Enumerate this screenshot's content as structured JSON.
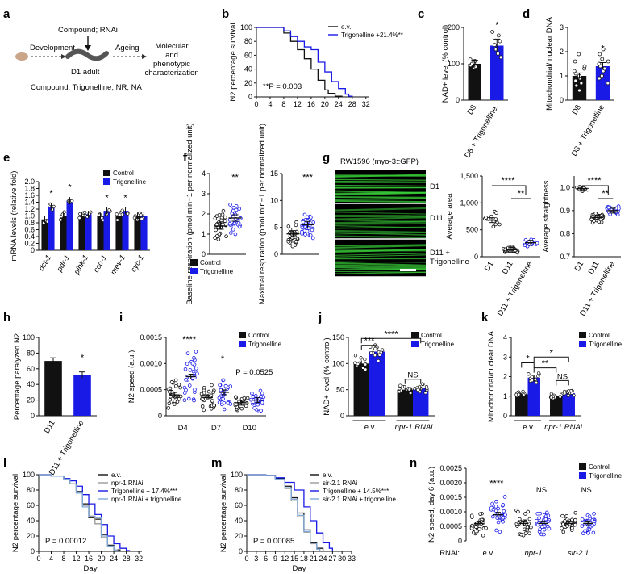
{
  "colors": {
    "control": "#111111",
    "treat": "#1a1ae6",
    "light": "#7fa8d8",
    "grey": "#9a9a9a",
    "worm": "#666666",
    "green": "#39d239"
  },
  "panels": {
    "a": {
      "label": "a",
      "compound_rnai": "Compound; RNAi",
      "development": "Development",
      "ageing": "Ageing",
      "d1": "D1 adult",
      "molecular": "Molecular",
      "and": "and",
      "phenotypic": "phenotypic",
      "characterization": "characterization",
      "compounds": "Compound: Trigonelline; NR; NA"
    },
    "b": {
      "label": "b",
      "p": "**P = 0.003"
    },
    "c": {
      "label": "c"
    },
    "d": {
      "label": "d"
    },
    "e": {
      "label": "e"
    },
    "f": {
      "label": "f"
    },
    "g": {
      "label": "g",
      "strain": "RW1596 (myo-3::GFP)",
      "rows": [
        "D1",
        "D11",
        "D11 +",
        "Trigonelline"
      ]
    },
    "h": {
      "label": "h"
    },
    "i": {
      "label": "i"
    },
    "j": {
      "label": "j"
    },
    "k": {
      "label": "k"
    },
    "l": {
      "label": "l",
      "p": "P = 0.00012"
    },
    "m": {
      "label": "m",
      "p": "P = 0.00085"
    },
    "n": {
      "label": "n",
      "rnai_label": "RNAi:"
    }
  },
  "chart_data": [
    {
      "id": "b",
      "type": "line",
      "ylabel": "N2 percentage survival",
      "ylim": [
        0,
        100
      ],
      "xlim": [
        0,
        33
      ],
      "xticks": [
        0,
        4,
        8,
        12,
        16,
        20,
        24,
        28,
        32
      ],
      "yticks": [
        0,
        20,
        40,
        60,
        80,
        100
      ],
      "legend": [
        "e.v.",
        "Trigonelline +21.4%**"
      ],
      "series": [
        {
          "name": "e.v.",
          "color": "control",
          "points": [
            [
              0,
              100
            ],
            [
              6,
              100
            ],
            [
              8,
              92
            ],
            [
              10,
              80
            ],
            [
              12,
              68
            ],
            [
              14,
              55
            ],
            [
              16,
              40
            ],
            [
              18,
              24
            ],
            [
              20,
              10
            ],
            [
              21,
              5
            ],
            [
              23,
              1
            ],
            [
              25,
              0
            ]
          ]
        },
        {
          "name": "Trigonelline",
          "color": "treat",
          "points": [
            [
              0,
              100
            ],
            [
              6,
              100
            ],
            [
              8,
              95
            ],
            [
              10,
              87
            ],
            [
              12,
              80
            ],
            [
              14,
              72
            ],
            [
              16,
              68
            ],
            [
              18,
              50
            ],
            [
              20,
              36
            ],
            [
              22,
              22
            ],
            [
              24,
              12
            ],
            [
              26,
              4
            ],
            [
              27,
              1
            ],
            [
              28,
              0
            ]
          ]
        }
      ]
    },
    {
      "id": "c",
      "type": "bar",
      "ylabel": "NAD+ level (% control)",
      "ylim": [
        0,
        200
      ],
      "yticks": [
        0,
        100,
        200
      ],
      "categories": [
        "D8",
        "D8 + Trigonelline."
      ],
      "values": [
        100,
        150
      ],
      "errors": [
        10,
        18
      ],
      "bar_colors": [
        "control",
        "treat"
      ],
      "stars": [
        "",
        "*"
      ],
      "dots": [
        [
          88,
          92,
          96,
          100,
          104,
          108,
          112
        ],
        [
          118,
          128,
          140,
          152,
          162,
          178,
          188
        ]
      ]
    },
    {
      "id": "d",
      "type": "bar",
      "ylabel": "Mitochondrial/ nuclear DNA",
      "ylim": [
        0,
        3
      ],
      "yticks": [
        0,
        1,
        2,
        3
      ],
      "categories": [
        "D8",
        "D8 + Trigonelline"
      ],
      "values": [
        1.0,
        1.4
      ],
      "errors": [
        0.12,
        0.15
      ],
      "bar_colors": [
        "control",
        "treat"
      ],
      "stars": [
        "",
        "*"
      ],
      "dots": [
        [
          0.4,
          0.6,
          0.7,
          0.8,
          0.9,
          1.0,
          1.1,
          1.2,
          1.3,
          1.4,
          1.6,
          1.9
        ],
        [
          0.7,
          0.9,
          1.0,
          1.2,
          1.3,
          1.4,
          1.5,
          1.6,
          1.7,
          1.9,
          2.1
        ]
      ]
    },
    {
      "id": "e",
      "type": "bar",
      "ylabel": "mRNA levels (relative fold)",
      "ylim": [
        0,
        2.0
      ],
      "yticks": [
        "0",
        "0.2",
        "0.4",
        "0.6",
        "0.8",
        "1.0",
        "1.2",
        "1.4",
        "1.6",
        "1.8",
        "2.0"
      ],
      "categories": [
        "dct-1",
        "pdr-1",
        "pink-1",
        "cco-1",
        "mev-1",
        "cyc-1"
      ],
      "series": [
        {
          "name": "Control",
          "color": "control",
          "values": [
            0.9,
            1.0,
            1.0,
            1.0,
            1.0,
            1.0
          ]
        },
        {
          "name": "Trigonelline",
          "color": "treat",
          "values": [
            1.28,
            1.45,
            1.05,
            1.15,
            1.15,
            1.0
          ]
        }
      ],
      "stars": [
        "*",
        "*",
        "",
        "*",
        "*",
        ""
      ]
    },
    {
      "id": "f1",
      "type": "scatter",
      "ylabel": "Baseline respiration (pmol min−1 per normalized unit)",
      "ylim": [
        0,
        4
      ],
      "yticks": [
        0,
        1,
        2,
        3,
        4
      ],
      "groups": [
        "Control",
        "Trigonelline"
      ],
      "means": [
        1.4,
        1.8
      ],
      "star": "**",
      "legend": [
        "Control",
        "Trigonelline"
      ]
    },
    {
      "id": "f2",
      "type": "scatter",
      "ylabel": "Maximal respiration (pmol min−1 per normalized unit)",
      "ylim": [
        0,
        15
      ],
      "yticks": [
        0,
        5,
        10,
        15
      ],
      "groups": [
        "Control",
        "Trigonelline"
      ],
      "means": [
        3.8,
        5.5
      ],
      "star": "***"
    },
    {
      "id": "g1",
      "type": "scatter",
      "ylabel": "Average area",
      "ylim": [
        0,
        1500
      ],
      "yticks": [
        "0",
        "500",
        "1,000",
        "1,500"
      ],
      "categories": [
        "D1",
        "D11",
        "D11 + Trigonelline"
      ],
      "means": [
        680,
        130,
        260
      ],
      "stars": [
        "****",
        "**"
      ]
    },
    {
      "id": "g2",
      "type": "scatter",
      "ylabel": "Average straightness",
      "ylim": [
        0.7,
        1.05
      ],
      "yticks": [
        "0.7",
        "0.8",
        "0.9",
        "1.0"
      ],
      "categories": [
        "D1",
        "D11",
        "D11 + Trigonelline"
      ],
      "means": [
        0.995,
        0.87,
        0.9
      ],
      "stars": [
        "****",
        "**"
      ]
    },
    {
      "id": "h",
      "type": "bar",
      "ylabel": "Percentage paralyzed N2",
      "ylim": [
        0,
        100
      ],
      "yticks": [
        0,
        20,
        40,
        60,
        80,
        100
      ],
      "categories": [
        "D11",
        "D11 + Trigonelline"
      ],
      "values": [
        70,
        52
      ],
      "errors": [
        4,
        4
      ],
      "bar_colors": [
        "control",
        "treat"
      ],
      "stars": [
        "",
        "*"
      ]
    },
    {
      "id": "i",
      "type": "scatter",
      "ylabel": "N2 speed (a.u.)",
      "ylim": [
        0,
        0.0015
      ],
      "yticks": [
        "0",
        "0.0005",
        "0.0010",
        "0.0015"
      ],
      "categories": [
        "D4",
        "D7",
        "D10"
      ],
      "means": [
        [
          0.0004,
          0.00075
        ],
        [
          0.00035,
          0.00045
        ],
        [
          0.00025,
          0.0003
        ]
      ],
      "stars": [
        "****",
        "*",
        "P = 0.0525"
      ],
      "legend": [
        "Control",
        "Trigonelline"
      ]
    },
    {
      "id": "j",
      "type": "bar",
      "ylabel": "NAD+ level (% control)",
      "ylim": [
        0,
        150
      ],
      "yticks": [
        0,
        50,
        100,
        150
      ],
      "categories": [
        "e.v.",
        "npr1"
      ],
      "group_labels": [
        "e.v.",
        "npr-1 RNAi"
      ],
      "series": [
        {
          "name": "Control",
          "color": "control",
          "values": [
            100,
            50
          ]
        },
        {
          "name": "Trigonelline",
          "color": "treat",
          "values": [
            123,
            53
          ]
        }
      ],
      "stars": [
        "***",
        "****",
        "NS"
      ],
      "legend": [
        "Control",
        "Trigonelline"
      ]
    },
    {
      "id": "k",
      "type": "bar",
      "ylabel": "Mitochondrial/nuclear DNA",
      "ylim": [
        0,
        4
      ],
      "yticks": [
        0,
        1,
        2,
        3,
        4
      ],
      "group_labels": [
        "e.v.",
        "npr-1 RNAi"
      ],
      "series": [
        {
          "name": "Control",
          "color": "control",
          "values": [
            1.1,
            1.0
          ]
        },
        {
          "name": "Trigonelline",
          "color": "treat",
          "values": [
            1.95,
            1.15
          ]
        }
      ],
      "stars": [
        "*",
        "**",
        "*",
        "NS"
      ],
      "legend": [
        "Control",
        "Trigonelline"
      ]
    },
    {
      "id": "l",
      "type": "line",
      "ylabel": "N2 percentage survival",
      "xlabel": "Day",
      "ylim": [
        0,
        100
      ],
      "xlim": [
        0,
        33
      ],
      "xticks": [
        0,
        4,
        8,
        12,
        16,
        20,
        24,
        28,
        32
      ],
      "yticks": [
        0,
        20,
        40,
        60,
        80,
        100
      ],
      "legend": [
        "e.v.",
        "npr-1 RNAi",
        "Trigonelline + 17.4%***",
        "npr-1 RNAi + trigonelline"
      ],
      "series": [
        {
          "name": "e.v.",
          "color": "control",
          "points": [
            [
              0,
              100
            ],
            [
              4,
              98
            ],
            [
              8,
              94
            ],
            [
              10,
              88
            ],
            [
              12,
              78
            ],
            [
              14,
              62
            ],
            [
              16,
              44
            ],
            [
              18,
              42
            ],
            [
              20,
              22
            ],
            [
              22,
              8
            ],
            [
              24,
              2
            ],
            [
              26,
              0
            ]
          ]
        },
        {
          "name": "npr-1 RNAi",
          "color": "grey",
          "points": [
            [
              0,
              100
            ],
            [
              4,
              98
            ],
            [
              8,
              94
            ],
            [
              10,
              88
            ],
            [
              12,
              76
            ],
            [
              14,
              60
            ],
            [
              16,
              46
            ],
            [
              18,
              36
            ],
            [
              20,
              18
            ],
            [
              22,
              6
            ],
            [
              24,
              1
            ],
            [
              25,
              0
            ]
          ]
        },
        {
          "name": "Trigonelline",
          "color": "treat",
          "points": [
            [
              0,
              100
            ],
            [
              4,
              98
            ],
            [
              8,
              95
            ],
            [
              10,
              92
            ],
            [
              12,
              85
            ],
            [
              14,
              74
            ],
            [
              16,
              62
            ],
            [
              18,
              48
            ],
            [
              20,
              35
            ],
            [
              22,
              20
            ],
            [
              24,
              10
            ],
            [
              26,
              4
            ],
            [
              28,
              1
            ],
            [
              29,
              0
            ]
          ]
        },
        {
          "name": "npr-1 RNAi + trigonelline",
          "color": "light",
          "points": [
            [
              0,
              100
            ],
            [
              4,
              98
            ],
            [
              8,
              94
            ],
            [
              10,
              88
            ],
            [
              12,
              76
            ],
            [
              14,
              58
            ],
            [
              16,
              45
            ],
            [
              18,
              44
            ],
            [
              20,
              20
            ],
            [
              22,
              7
            ],
            [
              24,
              2
            ],
            [
              25,
              0
            ]
          ]
        }
      ]
    },
    {
      "id": "m",
      "type": "line",
      "ylabel": "N2 percentage survival",
      "xlabel": "Day",
      "ylim": [
        0,
        100
      ],
      "xlim": [
        0,
        33
      ],
      "xticks": [
        0,
        3,
        6,
        9,
        12,
        15,
        18,
        21,
        24,
        27,
        30,
        33
      ],
      "yticks": [
        0,
        20,
        40,
        60,
        80,
        100
      ],
      "legend": [
        "e.v.",
        "sir-2.1 RNAi",
        "Trigonelline + 14.5%***",
        "sir-2.1 RNAi + trigonelline"
      ],
      "series": [
        {
          "name": "e.v.",
          "color": "control",
          "points": [
            [
              0,
              100
            ],
            [
              6,
              99
            ],
            [
              9,
              95
            ],
            [
              12,
              85
            ],
            [
              14,
              70
            ],
            [
              16,
              50
            ],
            [
              18,
              28
            ],
            [
              20,
              12
            ],
            [
              22,
              4
            ],
            [
              24,
              0
            ]
          ]
        },
        {
          "name": "sir-2.1 RNAi",
          "color": "grey",
          "points": [
            [
              0,
              100
            ],
            [
              6,
              99
            ],
            [
              9,
              94
            ],
            [
              12,
              82
            ],
            [
              14,
              66
            ],
            [
              16,
              45
            ],
            [
              18,
              25
            ],
            [
              20,
              10
            ],
            [
              22,
              3
            ],
            [
              23,
              0
            ]
          ]
        },
        {
          "name": "Trigonelline",
          "color": "treat",
          "points": [
            [
              0,
              100
            ],
            [
              6,
              99
            ],
            [
              9,
              96
            ],
            [
              12,
              90
            ],
            [
              15,
              80
            ],
            [
              18,
              58
            ],
            [
              20,
              40
            ],
            [
              22,
              24
            ],
            [
              24,
              12
            ],
            [
              26,
              4
            ],
            [
              27,
              0
            ]
          ]
        },
        {
          "name": "sir-2.1 RNAi + trigonelline",
          "color": "light",
          "points": [
            [
              0,
              100
            ],
            [
              6,
              99
            ],
            [
              9,
              94
            ],
            [
              12,
              83
            ],
            [
              14,
              68
            ],
            [
              16,
              47
            ],
            [
              18,
              26
            ],
            [
              20,
              11
            ],
            [
              22,
              3
            ],
            [
              23,
              0
            ]
          ]
        }
      ]
    },
    {
      "id": "n",
      "type": "scatter",
      "ylabel": "N2 speed, day 6 (a.u.)",
      "ylim": [
        0,
        0.0025
      ],
      "yticks": [
        "0",
        "0.0005",
        "0.0010",
        "0.0015",
        "0.0020",
        "0.0025"
      ],
      "categories": [
        "e.v.",
        "npr-1",
        "sir-2.1"
      ],
      "stars": [
        "****",
        "NS",
        "NS"
      ],
      "legend": [
        "Control",
        "Trigonelline"
      ]
    }
  ]
}
